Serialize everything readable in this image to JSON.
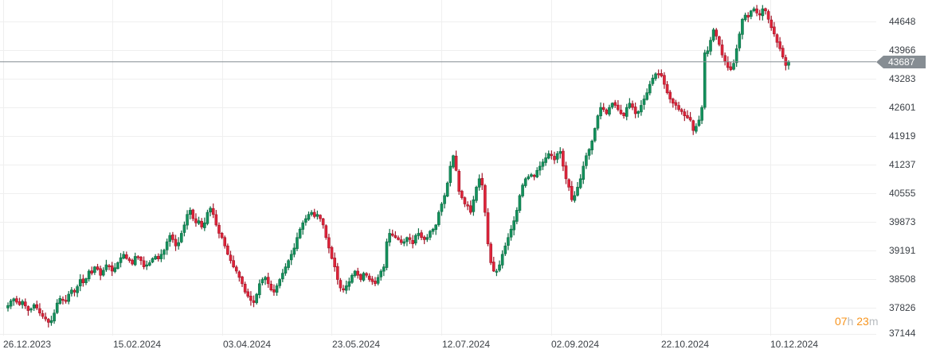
{
  "chart_data": {
    "type": "candlestick",
    "title": "",
    "xlabel": "",
    "ylabel": "",
    "ylim": [
      37000,
      45050
    ],
    "y_ticks": [
      44648,
      43966,
      43283,
      42601,
      41919,
      41237,
      40555,
      39873,
      39191,
      38508,
      37826,
      37144
    ],
    "x_ticks": [
      "26.12.2023",
      "15.02.2024",
      "03.04.2024",
      "23.05.2024",
      "12.07.2024",
      "02.09.2024",
      "22.10.2024",
      "10.12.2024"
    ],
    "last_price": 43687,
    "grid": true,
    "colors": {
      "up": "#14925d",
      "up_border": "#0d6b43",
      "down": "#e0243a",
      "down_border": "#a3172a",
      "last_line": "#868d93",
      "grid": "#efefef"
    },
    "closes": [
      37880,
      37990,
      38040,
      37960,
      37900,
      37980,
      37870,
      37760,
      37800,
      37900,
      37820,
      37700,
      37620,
      37560,
      37480,
      37520,
      37700,
      37940,
      38050,
      38000,
      37980,
      38150,
      38250,
      38200,
      38330,
      38500,
      38420,
      38520,
      38700,
      38650,
      38800,
      38740,
      38600,
      38720,
      38850,
      38820,
      38700,
      38780,
      38900,
      39020,
      39100,
      39000,
      38950,
      38870,
      39050,
      39040,
      38950,
      38800,
      38850,
      38900,
      39000,
      39050,
      38990,
      39100,
      39200,
      39400,
      39550,
      39450,
      39300,
      39380,
      39600,
      39800,
      40050,
      40150,
      39950,
      39850,
      39900,
      39750,
      39850,
      40100,
      40200,
      40050,
      39800,
      39600,
      39500,
      39300,
      39100,
      38950,
      38800,
      38700,
      38550,
      38400,
      38200,
      38100,
      38000,
      37950,
      38150,
      38400,
      38500,
      38550,
      38400,
      38250,
      38200,
      38350,
      38500,
      38650,
      38800,
      38950,
      39100,
      39250,
      39500,
      39700,
      39850,
      39950,
      40050,
      40100,
      40000,
      40050,
      39950,
      39800,
      39500,
      39250,
      39000,
      38800,
      38500,
      38300,
      38250,
      38350,
      38450,
      38600,
      38700,
      38600,
      38500,
      38650,
      38600,
      38500,
      38450,
      38400,
      38550,
      38700,
      38800,
      39400,
      39600,
      39550,
      39500,
      39450,
      39380,
      39400,
      39500,
      39450,
      39350,
      39550,
      39600,
      39500,
      39450,
      39500,
      39650,
      39700,
      39800,
      40100,
      40300,
      40500,
      40800,
      41200,
      41450,
      41100,
      40600,
      40450,
      40300,
      40250,
      40100,
      40400,
      40700,
      40900,
      40750,
      40100,
      39350,
      38900,
      38700,
      38700,
      38850,
      39100,
      39300,
      39500,
      39700,
      39900,
      40150,
      40500,
      40750,
      40900,
      40950,
      41000,
      40950,
      41100,
      41200,
      41300,
      41400,
      41500,
      41450,
      41350,
      41500,
      41550,
      41200,
      40900,
      40700,
      40400,
      40500,
      40700,
      40900,
      41200,
      41450,
      41600,
      41800,
      42100,
      42400,
      42600,
      42550,
      42450,
      42600,
      42700,
      42650,
      42550,
      42450,
      42400,
      42600,
      42700,
      42600,
      42450,
      42500,
      42650,
      42800,
      42950,
      43150,
      43300,
      43400,
      43400,
      43350,
      43150,
      42950,
      42800,
      42700,
      42650,
      42550,
      42500,
      42400,
      42350,
      42300,
      42050,
      42150,
      42300,
      42600,
      43900,
      43950,
      44200,
      44450,
      44300,
      44100,
      43850,
      43700,
      43550,
      43500,
      43650,
      44000,
      44350,
      44700,
      44800,
      44750,
      44900,
      44950,
      44850,
      44800,
      44950,
      44900,
      44700,
      44500,
      44350,
      44150,
      44000,
      43800,
      43600,
      43687
    ]
  },
  "axis": {
    "y_labels": [
      "44648",
      "43966",
      "43283",
      "42601",
      "41919",
      "41237",
      "40555",
      "39873",
      "39191",
      "38508",
      "37826",
      "37144"
    ],
    "x_labels": [
      "26.12.2023",
      "15.02.2024",
      "03.04.2024",
      "23.05.2024",
      "12.07.2024",
      "02.09.2024",
      "22.10.2024",
      "10.12.2024"
    ]
  },
  "last_price_tag": {
    "label": "43687"
  },
  "countdown": {
    "hours": "07",
    "hours_unit": "h",
    "minutes": "23",
    "minutes_unit": "m"
  }
}
